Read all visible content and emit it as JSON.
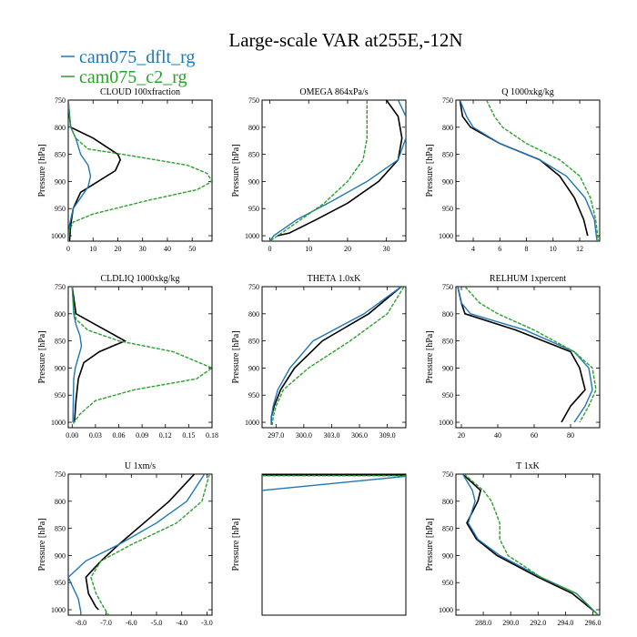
{
  "figure": {
    "title": "Large-scale VAR at255E,-12N",
    "legend": [
      {
        "name": "cam075_dflt_rg",
        "color": "#1f77b4"
      },
      {
        "name": "cam075_c2_rg",
        "color": "#2ca02c"
      }
    ]
  },
  "colors": {
    "obs": "#000000",
    "dflt": "#1f77b4",
    "c2": "#2ca02c"
  },
  "chart_data": [
    {
      "type": "line",
      "title": "CLOUD  100xfraction",
      "ylabel": "Pressure [hPa]",
      "xlim": [
        0,
        58
      ],
      "ylim": [
        750,
        1010
      ],
      "xticks": [
        0,
        10,
        20,
        30,
        40,
        50
      ],
      "xtick_labels": [
        "0",
        "10",
        "20",
        "30",
        "40",
        "50"
      ],
      "yticks": [
        750,
        800,
        850,
        900,
        950,
        1000
      ],
      "ytick_labels": [
        "750",
        "800",
        "850",
        "900",
        "950",
        "1000"
      ],
      "series": [
        {
          "key": "obs",
          "x": [
            0,
            0.5,
            1,
            10,
            20,
            21,
            19,
            12,
            5,
            2,
            1,
            0.5
          ],
          "y": [
            750,
            780,
            800,
            820,
            850,
            860,
            880,
            900,
            920,
            950,
            980,
            1010
          ]
        },
        {
          "key": "dflt",
          "x": [
            0,
            0.5,
            1,
            3,
            5,
            8,
            9,
            8,
            5,
            2,
            0.5,
            0
          ],
          "y": [
            750,
            780,
            800,
            820,
            850,
            870,
            890,
            910,
            930,
            950,
            980,
            1010
          ]
        },
        {
          "key": "c2",
          "x": [
            0,
            0.5,
            1,
            3,
            8,
            22,
            48,
            56,
            58,
            52,
            32,
            10,
            2,
            0.5,
            0
          ],
          "y": [
            750,
            780,
            800,
            820,
            840,
            850,
            870,
            885,
            900,
            915,
            935,
            960,
            975,
            990,
            1010
          ],
          "dashed": true
        }
      ]
    },
    {
      "type": "line",
      "title": "OMEGA  864xPa/s",
      "ylabel": "Pressure [hPa]",
      "xlim": [
        -2,
        35
      ],
      "ylim": [
        750,
        1010
      ],
      "xticks": [
        0,
        10,
        20,
        30
      ],
      "xtick_labels": [
        "0",
        "10",
        "20",
        "30"
      ],
      "yticks": [
        750,
        800,
        850,
        900,
        950,
        1000
      ],
      "ytick_labels": [
        "750",
        "800",
        "850",
        "900",
        "950",
        "1000"
      ],
      "series": [
        {
          "key": "obs",
          "x": [
            30,
            33,
            34,
            33,
            28,
            20,
            12,
            5,
            2
          ],
          "y": [
            750,
            780,
            820,
            860,
            900,
            940,
            970,
            995,
            1000
          ]
        },
        {
          "key": "dflt",
          "x": [
            33,
            35,
            35,
            33,
            25,
            15,
            7,
            1,
            0
          ],
          "y": [
            750,
            780,
            820,
            860,
            900,
            940,
            970,
            1000,
            1010
          ]
        },
        {
          "key": "c2",
          "x": [
            25,
            25,
            25,
            24,
            20,
            14,
            8,
            3,
            0
          ],
          "y": [
            750,
            780,
            820,
            860,
            900,
            940,
            970,
            995,
            1010
          ],
          "dashed": true
        }
      ]
    },
    {
      "type": "line",
      "title": "Q  1000xkg/kg",
      "ylabel": "Pressure [hPa]",
      "xlim": [
        2.7,
        13.5
      ],
      "ylim": [
        750,
        1010
      ],
      "xticks": [
        4,
        6,
        8,
        10,
        12
      ],
      "xtick_labels": [
        "4",
        "6",
        "8",
        "10",
        "12"
      ],
      "yticks": [
        750,
        800,
        850,
        900,
        950,
        1000
      ],
      "ytick_labels": [
        "750",
        "800",
        "850",
        "900",
        "950",
        "1000"
      ],
      "series": [
        {
          "key": "obs",
          "x": [
            3,
            3.2,
            3.8,
            6,
            9,
            10.5,
            11.6,
            12.3,
            12.6
          ],
          "y": [
            750,
            780,
            800,
            830,
            860,
            890,
            930,
            970,
            1000
          ]
        },
        {
          "key": "dflt",
          "x": [
            3,
            3.5,
            4,
            6,
            9,
            11,
            12.4,
            13.1,
            13.3
          ],
          "y": [
            750,
            780,
            800,
            830,
            860,
            890,
            930,
            970,
            1010
          ]
        },
        {
          "key": "c2",
          "x": [
            5,
            5.6,
            6.2,
            8,
            10.5,
            12,
            12.8,
            13.2,
            13.4
          ],
          "y": [
            750,
            780,
            800,
            830,
            860,
            890,
            930,
            970,
            1010
          ],
          "dashed": true
        }
      ]
    },
    {
      "type": "line",
      "title": "CLDLIQ  1000xkg/kg",
      "ylabel": "Pressure [hPa]",
      "xlim": [
        -0.005,
        0.18
      ],
      "ylim": [
        750,
        1010
      ],
      "xticks": [
        0,
        0.03,
        0.06,
        0.09,
        0.12,
        0.15,
        0.18
      ],
      "xtick_labels": [
        "0.00",
        "0.03",
        "0.06",
        "0.09",
        "0.12",
        "0.15",
        "0.18"
      ],
      "yticks": [
        750,
        800,
        850,
        900,
        950,
        1000
      ],
      "ytick_labels": [
        "750",
        "800",
        "850",
        "900",
        "950",
        "1000"
      ],
      "series": [
        {
          "key": "obs",
          "x": [
            0,
            0.003,
            0.005,
            0.03,
            0.068,
            0.035,
            0.015,
            0.008,
            0.005,
            0.003
          ],
          "y": [
            750,
            780,
            800,
            820,
            850,
            870,
            890,
            920,
            960,
            1000
          ]
        },
        {
          "key": "dflt",
          "x": [
            0,
            0.002,
            0.005,
            0.01,
            0.012,
            0.008,
            0.004,
            0.002,
            0.001
          ],
          "y": [
            750,
            800,
            820,
            840,
            860,
            880,
            900,
            920,
            1000
          ]
        },
        {
          "key": "c2",
          "x": [
            0,
            0.002,
            0.005,
            0.02,
            0.06,
            0.13,
            0.18,
            0.16,
            0.08,
            0.03,
            0.01,
            0
          ],
          "y": [
            750,
            790,
            810,
            830,
            850,
            870,
            900,
            920,
            940,
            960,
            985,
            1005
          ],
          "dashed": true
        }
      ]
    },
    {
      "type": "line",
      "title": "THETA  1.0xK",
      "ylabel": "Pressure [hPa]",
      "xlim": [
        295.5,
        311
      ],
      "ylim": [
        750,
        1010
      ],
      "xticks": [
        297,
        300,
        303,
        306,
        309
      ],
      "xtick_labels": [
        "297.0",
        "300.0",
        "303.0",
        "306.0",
        "309.0"
      ],
      "yticks": [
        750,
        800,
        850,
        900,
        950,
        1000
      ],
      "ytick_labels": [
        "750",
        "800",
        "850",
        "900",
        "950",
        "1000"
      ],
      "series": [
        {
          "key": "obs",
          "x": [
            310.5,
            307,
            302,
            299,
            297.5,
            296.8,
            296.5,
            296.5
          ],
          "y": [
            750,
            800,
            850,
            900,
            940,
            970,
            990,
            1005
          ]
        },
        {
          "key": "dflt",
          "x": [
            310.5,
            306.5,
            301,
            298.5,
            297.2,
            296.7,
            296.5,
            296.5
          ],
          "y": [
            750,
            800,
            850,
            900,
            940,
            970,
            990,
            1005
          ]
        },
        {
          "key": "c2",
          "x": [
            310.8,
            309,
            305,
            300.5,
            297.8,
            297,
            296.7,
            296.6
          ],
          "y": [
            750,
            800,
            850,
            900,
            940,
            970,
            990,
            1005
          ],
          "dashed": true
        }
      ]
    },
    {
      "type": "line",
      "title": "RELHUM  1xpercent",
      "ylabel": "Pressure [hPa]",
      "xlim": [
        17,
        96
      ],
      "ylim": [
        750,
        1010
      ],
      "xticks": [
        20,
        40,
        60,
        80
      ],
      "xtick_labels": [
        "20",
        "40",
        "60",
        "80"
      ],
      "yticks": [
        750,
        800,
        850,
        900,
        950,
        1000
      ],
      "ytick_labels": [
        "750",
        "800",
        "850",
        "900",
        "950",
        "1000"
      ],
      "series": [
        {
          "key": "obs",
          "x": [
            18,
            20,
            22,
            50,
            80,
            85,
            88,
            80,
            75
          ],
          "y": [
            750,
            780,
            800,
            830,
            870,
            900,
            940,
            970,
            1000
          ]
        },
        {
          "key": "dflt",
          "x": [
            18,
            20,
            25,
            55,
            82,
            90,
            92,
            88,
            82
          ],
          "y": [
            750,
            780,
            800,
            830,
            870,
            900,
            940,
            970,
            1000
          ]
        },
        {
          "key": "c2",
          "x": [
            22,
            30,
            40,
            60,
            82,
            92,
            94,
            90,
            85
          ],
          "y": [
            750,
            780,
            800,
            830,
            870,
            900,
            940,
            970,
            1000
          ],
          "dashed": true
        }
      ]
    },
    {
      "type": "line",
      "title": "U  1xm/s",
      "ylabel": "Pressure [hPa]",
      "xlim": [
        -8.5,
        -2.8
      ],
      "ylim": [
        750,
        1010
      ],
      "xticks": [
        -8,
        -7,
        -6,
        -5,
        -4,
        -3
      ],
      "xtick_labels": [
        "-8.0",
        "-7.0",
        "-6.0",
        "-5.0",
        "-4.0",
        "-3.0"
      ],
      "yticks": [
        750,
        800,
        850,
        900,
        950,
        1000
      ],
      "ytick_labels": [
        "750",
        "800",
        "850",
        "900",
        "950",
        "1000"
      ],
      "series": [
        {
          "key": "obs",
          "x": [
            -3.5,
            -4.5,
            -5.5,
            -6.5,
            -7.2,
            -7.8,
            -7.7,
            -7.4,
            -7.3
          ],
          "y": [
            750,
            800,
            840,
            880,
            910,
            940,
            970,
            995,
            1000
          ]
        },
        {
          "key": "dflt",
          "x": [
            -3.1,
            -3.8,
            -5,
            -6.5,
            -7.8,
            -8.5,
            -8.3,
            -8.1,
            -8.0
          ],
          "y": [
            750,
            800,
            840,
            880,
            910,
            940,
            960,
            980,
            1005
          ]
        },
        {
          "key": "c2",
          "x": [
            -2.9,
            -3.2,
            -4.2,
            -6,
            -7.2,
            -7.6,
            -7.4,
            -7.1,
            -6.9
          ],
          "y": [
            750,
            800,
            840,
            880,
            910,
            940,
            970,
            995,
            1010
          ],
          "dashed": true
        }
      ]
    },
    {
      "type": "line",
      "title": "",
      "ylabel": "Pressure [hPa]",
      "xlim": [
        0,
        1
      ],
      "ylim": [
        750,
        1010
      ],
      "xticks": [],
      "xtick_labels": [],
      "yticks": [],
      "ytick_labels": [],
      "series": [
        {
          "key": "obs",
          "x": [
            0,
            1
          ],
          "y": [
            752,
            752
          ]
        },
        {
          "key": "c2",
          "x": [
            0,
            1
          ],
          "y": [
            753,
            753
          ],
          "dashed": true
        },
        {
          "key": "dflt",
          "x": [
            0,
            1
          ],
          "y": [
            780,
            754
          ]
        }
      ]
    },
    {
      "type": "line",
      "title": "T  1xK",
      "ylabel": "Pressure [hPa]",
      "xlim": [
        286,
        296.5
      ],
      "ylim": [
        750,
        1010
      ],
      "xticks": [
        288,
        290,
        292,
        294,
        296
      ],
      "xtick_labels": [
        "288.0",
        "290.0",
        "292.0",
        "294.0",
        "296.0"
      ],
      "yticks": [
        750,
        800,
        850,
        900,
        950,
        1000
      ],
      "ytick_labels": [
        "750",
        "800",
        "850",
        "900",
        "950",
        "1000"
      ],
      "series": [
        {
          "key": "obs",
          "x": [
            286.5,
            287.8,
            287.6,
            286.8,
            287.5,
            289,
            292,
            294.5,
            296.2
          ],
          "y": [
            750,
            780,
            800,
            840,
            870,
            900,
            940,
            970,
            1005
          ]
        },
        {
          "key": "dflt",
          "x": [
            286.5,
            287.2,
            287.4,
            286.9,
            287.6,
            289.2,
            292.2,
            294.8,
            296.4
          ],
          "y": [
            750,
            780,
            800,
            840,
            870,
            900,
            940,
            970,
            1010
          ]
        },
        {
          "key": "c2",
          "x": [
            286.6,
            288,
            288.6,
            289.2,
            289.2,
            289.8,
            292.2,
            294.8,
            296.3
          ],
          "y": [
            750,
            780,
            800,
            840,
            870,
            900,
            940,
            970,
            1008
          ],
          "dashed": true
        }
      ]
    }
  ]
}
